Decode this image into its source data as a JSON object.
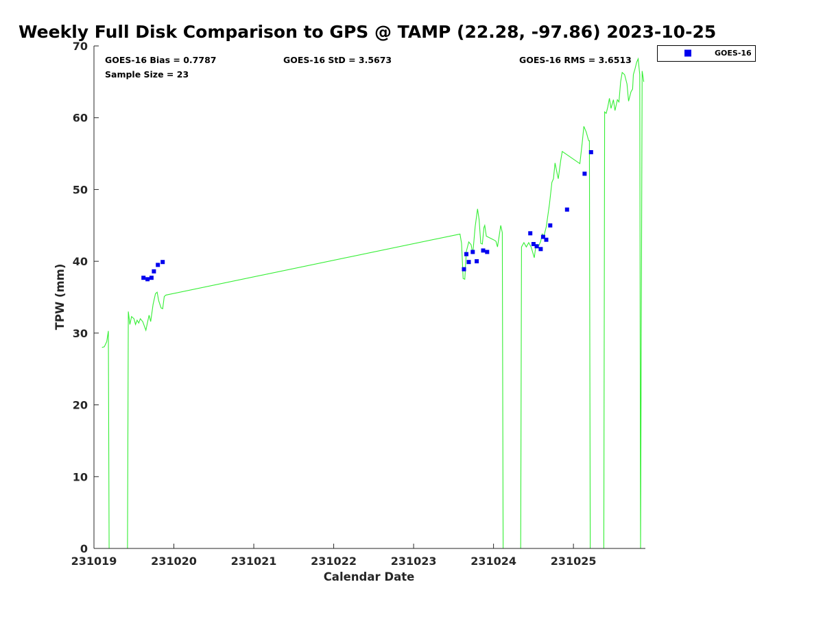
{
  "chart_data": {
    "type": "scatter",
    "title": "Weekly Full Disk Comparison to GPS @ TAMP (22.28, -97.86) 2023-10-25",
    "xlabel": "Calendar Date",
    "ylabel": "TPW (mm)",
    "xlim": [
      0,
      6.9
    ],
    "ylim": [
      0,
      70
    ],
    "x_ticks": [
      {
        "value": 0,
        "label": "231019"
      },
      {
        "value": 1,
        "label": "231020"
      },
      {
        "value": 2,
        "label": "231021"
      },
      {
        "value": 3,
        "label": "231022"
      },
      {
        "value": 4,
        "label": "231023"
      },
      {
        "value": 5,
        "label": "231024"
      },
      {
        "value": 6,
        "label": "231025"
      }
    ],
    "y_ticks": [
      0,
      10,
      20,
      30,
      40,
      50,
      60,
      70
    ],
    "grid": false,
    "legend_position": "outside-top-right",
    "stats": {
      "bias": "GOES-16 Bias = 0.7787",
      "std": "GOES-16 StD = 3.5673",
      "rms": "GOES-16 RMS = 3.6513",
      "sample": "Sample Size = 23"
    },
    "series": [
      {
        "name": "GOES-16",
        "kind": "markers",
        "color": "#0000ee",
        "points": [
          [
            0.62,
            37.7
          ],
          [
            0.67,
            37.5
          ],
          [
            0.72,
            37.7
          ],
          [
            0.75,
            38.6
          ],
          [
            0.8,
            39.5
          ],
          [
            0.86,
            39.9
          ],
          [
            4.63,
            38.9
          ],
          [
            4.66,
            41.0
          ],
          [
            4.69,
            39.9
          ],
          [
            4.74,
            41.3
          ],
          [
            4.79,
            40.0
          ],
          [
            4.87,
            41.5
          ],
          [
            4.92,
            41.3
          ],
          [
            5.46,
            43.9
          ],
          [
            5.5,
            42.4
          ],
          [
            5.54,
            42.1
          ],
          [
            5.59,
            41.7
          ],
          [
            5.62,
            43.4
          ],
          [
            5.66,
            43.0
          ],
          [
            5.71,
            45.0
          ],
          [
            5.92,
            47.2
          ],
          [
            6.14,
            52.2
          ],
          [
            6.22,
            55.2
          ]
        ]
      },
      {
        "kind": "line",
        "color": "#33ee33",
        "points": [
          [
            0.1,
            28.0
          ],
          [
            0.13,
            28.1
          ],
          [
            0.16,
            28.8
          ],
          [
            0.18,
            30.3
          ],
          [
            0.19,
            0.0
          ],
          [
            0.42,
            0.0
          ],
          [
            0.43,
            33.0
          ],
          [
            0.45,
            31.2
          ],
          [
            0.47,
            32.3
          ],
          [
            0.5,
            32.0
          ],
          [
            0.52,
            31.2
          ],
          [
            0.54,
            31.8
          ],
          [
            0.56,
            31.4
          ],
          [
            0.58,
            32.0
          ],
          [
            0.61,
            31.6
          ],
          [
            0.63,
            31.0
          ],
          [
            0.65,
            30.4
          ],
          [
            0.67,
            31.5
          ],
          [
            0.69,
            32.5
          ],
          [
            0.71,
            31.6
          ],
          [
            0.74,
            34.0
          ],
          [
            0.77,
            35.5
          ],
          [
            0.79,
            35.7
          ],
          [
            0.81,
            34.5
          ],
          [
            0.84,
            33.5
          ],
          [
            0.86,
            33.4
          ],
          [
            0.88,
            35.1
          ],
          [
            0.9,
            35.3
          ],
          [
            4.58,
            43.8
          ],
          [
            4.6,
            42.5
          ],
          [
            4.62,
            37.6
          ],
          [
            4.64,
            37.5
          ],
          [
            4.66,
            41.4
          ],
          [
            4.69,
            42.7
          ],
          [
            4.72,
            42.3
          ],
          [
            4.74,
            41.0
          ],
          [
            4.77,
            44.8
          ],
          [
            4.8,
            47.3
          ],
          [
            4.82,
            45.8
          ],
          [
            4.84,
            42.5
          ],
          [
            4.86,
            42.4
          ],
          [
            4.88,
            44.7
          ],
          [
            4.89,
            45.0
          ],
          [
            4.91,
            43.5
          ],
          [
            5.0,
            43.0
          ],
          [
            5.03,
            42.8
          ],
          [
            5.05,
            42.0
          ],
          [
            5.07,
            43.5
          ],
          [
            5.09,
            45.0
          ],
          [
            5.11,
            44.0
          ],
          [
            5.12,
            0.0
          ],
          [
            5.34,
            0.0
          ],
          [
            5.35,
            42.0
          ],
          [
            5.38,
            42.6
          ],
          [
            5.41,
            42.0
          ],
          [
            5.44,
            42.6
          ],
          [
            5.47,
            42.0
          ],
          [
            5.51,
            40.5
          ],
          [
            5.53,
            42.2
          ],
          [
            5.56,
            42.0
          ],
          [
            5.59,
            42.8
          ],
          [
            5.61,
            43.8
          ],
          [
            5.63,
            43.5
          ],
          [
            5.66,
            44.8
          ],
          [
            5.7,
            48.0
          ],
          [
            5.73,
            51.0
          ],
          [
            5.75,
            51.5
          ],
          [
            5.77,
            53.7
          ],
          [
            5.8,
            52.0
          ],
          [
            5.81,
            51.5
          ],
          [
            5.84,
            54.0
          ],
          [
            5.86,
            55.3
          ],
          [
            6.08,
            53.6
          ],
          [
            6.11,
            56.5
          ],
          [
            6.13,
            58.8
          ],
          [
            6.16,
            58.0
          ],
          [
            6.19,
            56.8
          ],
          [
            6.2,
            56.8
          ],
          [
            6.21,
            0.0
          ],
          [
            6.38,
            0.0
          ],
          [
            6.39,
            60.8
          ],
          [
            6.41,
            60.6
          ],
          [
            6.43,
            61.5
          ],
          [
            6.45,
            62.7
          ],
          [
            6.47,
            61.3
          ],
          [
            6.5,
            62.5
          ],
          [
            6.52,
            61.0
          ],
          [
            6.55,
            62.5
          ],
          [
            6.57,
            62.2
          ],
          [
            6.59,
            65.0
          ],
          [
            6.61,
            66.3
          ],
          [
            6.64,
            66.0
          ],
          [
            6.67,
            64.7
          ],
          [
            6.69,
            62.3
          ],
          [
            6.72,
            63.6
          ],
          [
            6.74,
            64.0
          ],
          [
            6.75,
            66.0
          ],
          [
            6.77,
            66.8
          ],
          [
            6.79,
            67.7
          ],
          [
            6.81,
            68.2
          ],
          [
            6.83,
            66.0
          ],
          [
            6.84,
            0.0
          ],
          [
            6.86,
            66.5
          ],
          [
            6.88,
            65.0
          ]
        ]
      }
    ]
  }
}
